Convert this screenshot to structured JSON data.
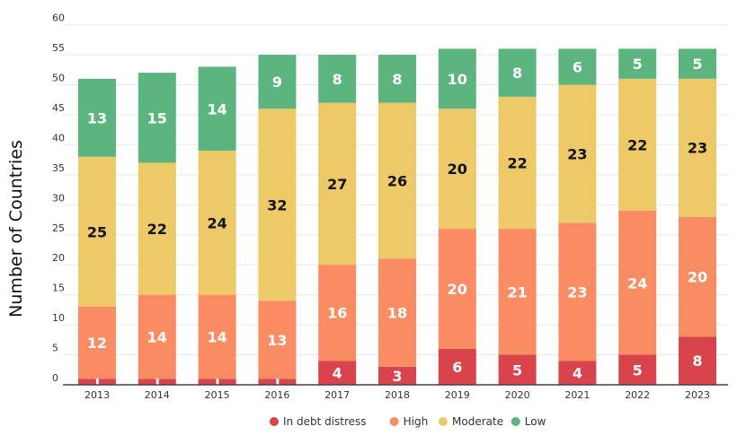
{
  "chart_data": {
    "type": "bar",
    "stacked": true,
    "ylabel": "Number of Countries",
    "ylim": [
      0,
      60
    ],
    "yticks": [
      "0",
      "5",
      "10",
      "15",
      "20",
      "25",
      "30",
      "35",
      "40",
      "45",
      "50",
      "55",
      "60"
    ],
    "grid": true,
    "legend_position": "bottom",
    "categories": [
      "2013",
      "2014",
      "2015",
      "2016",
      "2017",
      "2018",
      "2019",
      "2020",
      "2021",
      "2022",
      "2023"
    ],
    "series": [
      {
        "name": "In debt distress",
        "color": "#d9434b",
        "label_color": "#ffffff",
        "values": [
          1,
          1,
          1,
          1,
          4,
          3,
          6,
          5,
          4,
          5,
          8
        ]
      },
      {
        "name": "High",
        "color": "#f98c62",
        "label_color": "#ffffff",
        "values": [
          12,
          14,
          14,
          13,
          16,
          18,
          20,
          21,
          23,
          24,
          20
        ]
      },
      {
        "name": "Moderate",
        "color": "#edc967",
        "label_color": "#111111",
        "values": [
          25,
          22,
          24,
          32,
          27,
          26,
          20,
          22,
          23,
          22,
          23
        ]
      },
      {
        "name": "Low",
        "color": "#5cb57f",
        "label_color": "#ffffff",
        "values": [
          13,
          15,
          14,
          9,
          8,
          8,
          10,
          8,
          6,
          5,
          5
        ]
      }
    ]
  }
}
